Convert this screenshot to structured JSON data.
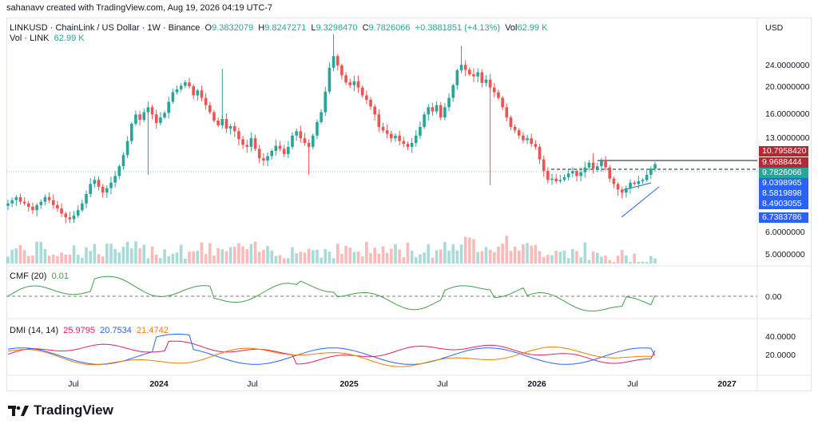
{
  "attribution": "sahanavv created with TradingView.com, Aug 19, 2026 04:19 UTC-7",
  "header": {
    "symbol": "LINKUSD · ChainLink / US Dollar · 1W · Binance",
    "open_label": "O",
    "open": "9.3832079",
    "high_label": "H",
    "high": "9.8247271",
    "low_label": "L",
    "low": "9.3298470",
    "close_label": "C",
    "close": "9.7826066",
    "change": "+0.3881851 (+4.13%)",
    "vol_label": "Vol",
    "vol": "62.99 K"
  },
  "volume_legend": {
    "label": "Vol · LINK",
    "value": "62.99 K"
  },
  "currency": "USD",
  "price_axis": [
    "24.0000000",
    "20.0000000",
    "16.0000000",
    "13.0000000",
    "6.0000000",
    "5.0000000"
  ],
  "price_tags": [
    {
      "value": "10.7958420",
      "color": "#b22833"
    },
    {
      "value": "9.9688444",
      "color": "#b22833"
    },
    {
      "value": "9.7826066",
      "color": "#26a69a"
    },
    {
      "value": "9.0398965",
      "color": "#2962ff"
    },
    {
      "value": "8.5819898",
      "color": "#2962ff"
    },
    {
      "value": "8.4903055",
      "color": "#2962ff"
    },
    {
      "value": "6.7383786",
      "color": "#2962ff"
    }
  ],
  "cmf": {
    "label": "CMF (20)",
    "value": "0.01",
    "axis_value": "0.00",
    "color": "#43a047"
  },
  "dmi": {
    "label": "DMI (14, 14)",
    "values": [
      {
        "value": "25.9795",
        "color": "#e91e63"
      },
      {
        "value": "20.7534",
        "color": "#2962ff"
      },
      {
        "value": "21.4742",
        "color": "#f57c00"
      }
    ],
    "axis": [
      "40.0000",
      "20.0000"
    ]
  },
  "time_axis": [
    {
      "label": "Jul",
      "bold": false
    },
    {
      "label": "2024",
      "bold": true
    },
    {
      "label": "Jul",
      "bold": false
    },
    {
      "label": "2025",
      "bold": true
    },
    {
      "label": "Jul",
      "bold": false
    },
    {
      "label": "2026",
      "bold": true
    },
    {
      "label": "Jul",
      "bold": false
    },
    {
      "label": "2027",
      "bold": true
    }
  ],
  "brand": "TradingView",
  "chart_data": {
    "type": "candlestick",
    "interval": "1W",
    "scale": "log",
    "x_range": [
      "2023-02",
      "2026-08"
    ],
    "up_color": "#26a69a",
    "down_color": "#ef5350",
    "price_series": [
      6.9,
      7.1,
      7.3,
      7.0,
      6.9,
      6.7,
      6.5,
      6.8,
      7.0,
      7.3,
      7.1,
      6.8,
      6.6,
      6.3,
      6.1,
      6.0,
      6.2,
      6.5,
      6.9,
      7.5,
      8.2,
      8.5,
      8.0,
      7.6,
      7.9,
      8.3,
      8.8,
      9.6,
      10.6,
      12.0,
      14.0,
      15.2,
      14.5,
      15.5,
      16.2,
      15.2,
      14.1,
      14.8,
      15.4,
      17.0,
      18.5,
      19.0,
      19.6,
      20.2,
      19.5,
      18.0,
      18.8,
      17.6,
      16.5,
      15.5,
      14.4,
      13.8,
      14.6,
      13.4,
      13.7,
      13.1,
      12.2,
      11.6,
      11.4,
      12.3,
      11.2,
      10.3,
      10.1,
      10.5,
      11.0,
      11.5,
      11.2,
      10.7,
      11.4,
      12.6,
      13.1,
      12.3,
      11.8,
      11.4,
      12.6,
      14.2,
      15.5,
      18.6,
      23.0,
      25.5,
      23.5,
      21.5,
      20.2,
      19.7,
      20.4,
      19.3,
      18.0,
      17.3,
      16.3,
      15.2,
      13.6,
      13.2,
      12.8,
      12.3,
      12.6,
      12.0,
      11.7,
      11.4,
      11.8,
      12.6,
      13.6,
      15.2,
      16.2,
      15.6,
      16.5,
      14.8,
      16.2,
      17.6,
      19.7,
      22.5,
      23.6,
      22.6,
      21.7,
      21.3,
      22.1,
      20.1,
      20.7,
      19.3,
      18.5,
      17.6,
      16.2,
      14.8,
      13.6,
      13.2,
      12.6,
      12.1,
      12.3,
      11.7,
      11.4,
      10.2,
      9.2,
      8.5,
      8.6,
      8.4,
      8.5,
      8.7,
      9.0,
      9.2,
      8.8,
      9.1,
      9.5,
      9.9,
      9.4,
      9.6,
      10.1,
      9.5,
      8.6,
      8.2,
      7.8,
      7.6,
      7.9,
      8.3,
      8.2,
      8.4,
      8.5,
      8.9,
      9.4,
      9.78
    ],
    "wicks": [
      {
        "date": "2023-10",
        "low": 8.9
      },
      {
        "date": "2024-03",
        "high": 22.8
      },
      {
        "date": "2024-08",
        "low": 8.9
      },
      {
        "date": "2024-12",
        "high": 30.9
      },
      {
        "date": "2025-08",
        "high": 27.9
      },
      {
        "date": "2025-10",
        "low": 8.1
      },
      {
        "date": "2026-05",
        "high": 10.8
      },
      {
        "date": "2026-06",
        "low": 7.2
      }
    ],
    "volume": "bars per week, latest 62.99 K",
    "horizontal_levels": [
      10.795842,
      9.9688444
    ],
    "last_price": 9.7826066,
    "triangle_pattern": {
      "upper_line": [
        9.0398965,
        9.9
      ],
      "lower_line": [
        6.7383786,
        8.5819898
      ]
    },
    "cmf_latest": 0.01,
    "dmi_latest": {
      "plus_di": 25.9795,
      "minus_di": 20.7534,
      "adx": 21.4742
    }
  }
}
